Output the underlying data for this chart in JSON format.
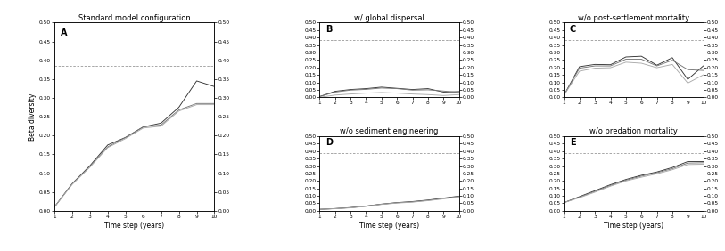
{
  "title_A": "Standard model configuration",
  "title_B": "w/ global dispersal",
  "title_C": "w/o post-settlement mortality",
  "title_D": "w/o sediment engineering",
  "title_E": "w/o predation mortality",
  "xlabel": "Time step (years)",
  "ylabel": "Beta diversity",
  "ylim": [
    0.0,
    0.5
  ],
  "dashed_line_y": 0.385,
  "xticks": [
    1,
    2,
    3,
    4,
    5,
    6,
    7,
    8,
    9,
    10
  ],
  "yticks": [
    0.0,
    0.05,
    0.1,
    0.15,
    0.2,
    0.25,
    0.3,
    0.35,
    0.4,
    0.45,
    0.5
  ],
  "line_colors": [
    "#333333",
    "#777777",
    "#aaaaaa"
  ],
  "dashed_color": "#999999",
  "bg_color": "#ffffff",
  "A": {
    "lines": [
      [
        0.01,
        0.072,
        0.12,
        0.175,
        0.195,
        0.223,
        0.233,
        0.275,
        0.345,
        0.33
      ],
      [
        0.01,
        0.072,
        0.118,
        0.17,
        0.195,
        0.223,
        0.228,
        0.268,
        0.285,
        0.285
      ],
      [
        0.01,
        0.07,
        0.116,
        0.168,
        0.192,
        0.22,
        0.225,
        0.265,
        0.282,
        0.282
      ]
    ]
  },
  "B": {
    "lines": [
      [
        0.005,
        0.04,
        0.052,
        0.058,
        0.068,
        0.06,
        0.052,
        0.058,
        0.035,
        0.038
      ],
      [
        0.005,
        0.035,
        0.048,
        0.053,
        0.062,
        0.058,
        0.048,
        0.05,
        0.042,
        0.032
      ],
      [
        0.0,
        0.015,
        0.022,
        0.028,
        0.032,
        0.028,
        0.022,
        0.018,
        0.012,
        0.018
      ]
    ]
  },
  "C": {
    "lines": [
      [
        0.015,
        0.205,
        0.22,
        0.218,
        0.27,
        0.275,
        0.215,
        0.265,
        0.12,
        0.21
      ],
      [
        0.015,
        0.195,
        0.21,
        0.21,
        0.255,
        0.255,
        0.21,
        0.248,
        0.185,
        0.18
      ],
      [
        0.015,
        0.175,
        0.195,
        0.198,
        0.235,
        0.228,
        0.198,
        0.22,
        0.095,
        0.15
      ]
    ]
  },
  "D": {
    "lines": [
      [
        0.01,
        0.015,
        0.022,
        0.032,
        0.045,
        0.055,
        0.062,
        0.072,
        0.085,
        0.098
      ],
      [
        0.01,
        0.015,
        0.021,
        0.031,
        0.044,
        0.054,
        0.06,
        0.07,
        0.083,
        0.096
      ],
      [
        0.01,
        0.014,
        0.02,
        0.03,
        0.043,
        0.052,
        0.058,
        0.068,
        0.08,
        0.093
      ]
    ]
  },
  "E": {
    "lines": [
      [
        0.055,
        0.095,
        0.135,
        0.175,
        0.21,
        0.238,
        0.26,
        0.29,
        0.33,
        0.33
      ],
      [
        0.055,
        0.092,
        0.13,
        0.17,
        0.205,
        0.232,
        0.255,
        0.282,
        0.32,
        0.322
      ],
      [
        0.055,
        0.088,
        0.125,
        0.165,
        0.2,
        0.225,
        0.248,
        0.275,
        0.31,
        0.312
      ]
    ]
  }
}
